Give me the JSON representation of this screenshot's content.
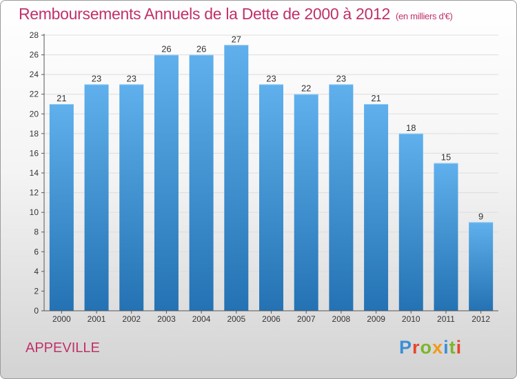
{
  "title": "Remboursements Annuels de la Dette de 2000 à 2012",
  "subtitle": "(en milliers d'€)",
  "commune": "APPEVILLE",
  "logo": {
    "letters": [
      "P",
      "r",
      "o",
      "x",
      "i",
      "t",
      "i"
    ],
    "colors": [
      "#3b8fd6",
      "#e8442c",
      "#7cb52e",
      "#f29a17",
      "#3b8fd6",
      "#7cb52e",
      "#e8442c"
    ]
  },
  "colors": {
    "bar_top": "#5fb0ec",
    "bar_bottom": "#2472b3",
    "title": "#c0306a"
  },
  "chart_data": {
    "type": "bar",
    "title": "Remboursements Annuels de la Dette de 2000 à 2012",
    "categories": [
      "2000",
      "2001",
      "2002",
      "2003",
      "2004",
      "2005",
      "2006",
      "2007",
      "2008",
      "2009",
      "2010",
      "2011",
      "2012"
    ],
    "values": [
      21,
      23,
      23,
      26,
      26,
      27,
      23,
      22,
      23,
      21,
      18,
      15,
      9
    ],
    "value_labels": [
      "21",
      "23",
      "23",
      "26",
      "26",
      "27",
      "23",
      "22",
      "23",
      "21",
      "18",
      "15",
      "9"
    ],
    "ylim": [
      0,
      28
    ],
    "yticks": [
      0,
      2,
      4,
      6,
      8,
      10,
      12,
      14,
      16,
      18,
      20,
      22,
      24,
      26,
      28
    ],
    "ytick_labels": [
      "0",
      "2",
      "4",
      "6",
      "8",
      "10",
      "12",
      "14",
      "16",
      "18",
      "20",
      "22",
      "24",
      "26",
      "28"
    ],
    "grid": true,
    "xlabel": "",
    "ylabel": ""
  }
}
